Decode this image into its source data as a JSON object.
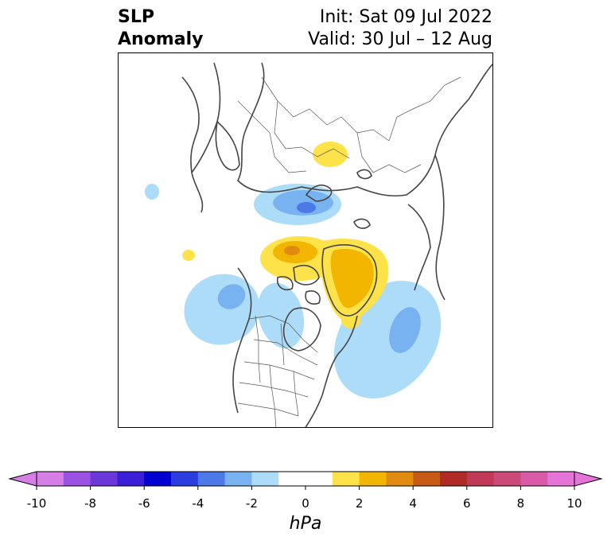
{
  "title": {
    "left_line1": "SLP",
    "left_line2": "Anomaly",
    "right_line1": "Init: Sat 09 Jul 2022",
    "right_line2": "Valid: 30 Jul – 12 Aug"
  },
  "colorbar": {
    "unit": "hPa",
    "tick_labels": [
      "-10",
      "-8",
      "-6",
      "-4",
      "-2",
      "0",
      "2",
      "4",
      "6",
      "8",
      "10"
    ],
    "colors": [
      "#d47ee6",
      "#9c52e0",
      "#6a38d8",
      "#3a1ed8",
      "#0000d0",
      "#2a3ee0",
      "#4c78e8",
      "#78b2f0",
      "#acdcf8",
      "#ffffff",
      "#ffffff",
      "#fde24a",
      "#f2b600",
      "#e08a10",
      "#c85a18",
      "#b02a26",
      "#c03a58",
      "#cc4a78",
      "#d85aa8",
      "#e474d8"
    ]
  },
  "map": {
    "field": "SLP anomaly",
    "region": "Northern Hemisphere polar stereographic",
    "anomalies": [
      {
        "sign": "positive",
        "max_hpa": 2.5,
        "location": "Siberia"
      },
      {
        "sign": "negative",
        "min_hpa": -3.5,
        "location": "Barents / Kara Sea"
      },
      {
        "sign": "positive",
        "max_hpa": 3.5,
        "location": "Arctic Ocean north of Canada"
      },
      {
        "sign": "positive",
        "max_hpa": 3.5,
        "location": "Greenland"
      },
      {
        "sign": "negative",
        "min_hpa": -2.5,
        "location": "Gulf of Alaska"
      },
      {
        "sign": "negative",
        "min_hpa": -2.5,
        "location": "Western Canada"
      },
      {
        "sign": "negative",
        "min_hpa": -3,
        "location": "North Atlantic"
      }
    ]
  }
}
